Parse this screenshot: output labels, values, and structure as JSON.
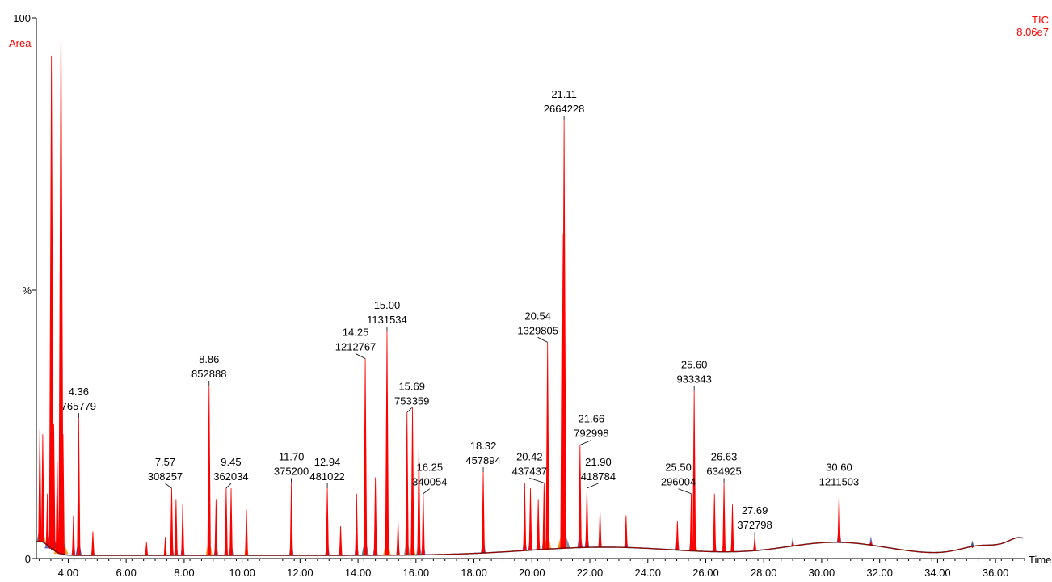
{
  "header": {
    "area_label": "Area",
    "trace_label": "TIC",
    "trace_intensity": "8.06e7"
  },
  "colors": {
    "trace": "#ff0000",
    "text": "#000000",
    "label_red": "#ff0000",
    "fill_palette": [
      "#1f3b8c",
      "#2f6b78",
      "#ff8c00",
      "#708090",
      "#4b4fa8"
    ]
  },
  "chart_data": {
    "type": "line",
    "x_unit_label": "Time",
    "y_unit_label": "%",
    "xlim": [
      2.9,
      37.0
    ],
    "ylim": [
      0,
      100
    ],
    "x_ticks": [
      4.0,
      6.0,
      8.0,
      10.0,
      12.0,
      14.0,
      16.0,
      18.0,
      20.0,
      22.0,
      24.0,
      26.0,
      28.0,
      30.0,
      32.0,
      34.0,
      36.0
    ],
    "x_tick_labels": [
      "4.00",
      "6.00",
      "8.00",
      "10.00",
      "12.00",
      "14.00",
      "16.00",
      "18.00",
      "20.00",
      "22.00",
      "24.00",
      "26.00",
      "28.00",
      "30.00",
      "32.00",
      "34.00",
      "36.00"
    ],
    "y_tick_labels": [
      {
        "value": 100,
        "label": "100"
      },
      {
        "value": 0,
        "label": "0"
      }
    ],
    "labeled_peaks": [
      {
        "rt": 4.36,
        "area": "765779",
        "rt_label": "4.36",
        "height": 26
      },
      {
        "rt": 7.57,
        "area": "308257",
        "rt_label": "7.57",
        "height": 13
      },
      {
        "rt": 8.86,
        "area": "852888",
        "rt_label": "8.86",
        "height": 32
      },
      {
        "rt": 9.45,
        "area": "362034",
        "rt_label": "9.45",
        "height": 13
      },
      {
        "rt": 11.7,
        "area": "375200",
        "rt_label": "11.70",
        "height": 14
      },
      {
        "rt": 12.94,
        "area": "481022",
        "rt_label": "12.94",
        "height": 13
      },
      {
        "rt": 14.25,
        "area": "1212767",
        "rt_label": "14.25",
        "height": 37
      },
      {
        "rt": 15.0,
        "area": "1131534",
        "rt_label": "15.00",
        "height": 42
      },
      {
        "rt": 15.69,
        "area": "753359",
        "rt_label": "15.69",
        "height": 27
      },
      {
        "rt": 16.25,
        "area": "340054",
        "rt_label": "16.25",
        "height": 12
      },
      {
        "rt": 18.32,
        "area": "457894",
        "rt_label": "18.32",
        "height": 16
      },
      {
        "rt": 20.42,
        "area": "437437",
        "rt_label": "20.42",
        "height": 14
      },
      {
        "rt": 20.54,
        "area": "1329805",
        "rt_label": "20.54",
        "height": 40
      },
      {
        "rt": 21.11,
        "area": "2664228",
        "rt_label": "21.11",
        "height": 81
      },
      {
        "rt": 21.66,
        "area": "792998",
        "rt_label": "21.66",
        "height": 21
      },
      {
        "rt": 21.9,
        "area": "418784",
        "rt_label": "21.90",
        "height": 13
      },
      {
        "rt": 25.5,
        "area": "296004",
        "rt_label": "25.50",
        "height": 12
      },
      {
        "rt": 25.6,
        "area": "933343",
        "rt_label": "25.60",
        "height": 31
      },
      {
        "rt": 26.63,
        "area": "634925",
        "rt_label": "26.63",
        "height": 14
      },
      {
        "rt": 27.69,
        "area": "372798",
        "rt_label": "27.69",
        "height": 4
      },
      {
        "rt": 30.6,
        "area": "1211503",
        "rt_label": "30.60",
        "height": 12
      }
    ],
    "unlabeled_peaks": [
      {
        "rt": 3.02,
        "height": 24
      },
      {
        "rt": 3.12,
        "height": 23
      },
      {
        "rt": 3.28,
        "height": 12
      },
      {
        "rt": 3.42,
        "height": 93
      },
      {
        "rt": 3.5,
        "height": 25
      },
      {
        "rt": 3.62,
        "height": 18
      },
      {
        "rt": 3.75,
        "height": 100
      },
      {
        "rt": 3.82,
        "height": 23
      },
      {
        "rt": 4.18,
        "height": 8
      },
      {
        "rt": 4.85,
        "height": 5
      },
      {
        "rt": 6.7,
        "height": 3
      },
      {
        "rt": 7.35,
        "height": 4
      },
      {
        "rt": 7.72,
        "height": 11
      },
      {
        "rt": 7.95,
        "height": 10
      },
      {
        "rt": 9.1,
        "height": 11
      },
      {
        "rt": 9.62,
        "height": 13
      },
      {
        "rt": 10.15,
        "height": 9
      },
      {
        "rt": 13.4,
        "height": 6
      },
      {
        "rt": 13.95,
        "height": 12
      },
      {
        "rt": 14.6,
        "height": 15
      },
      {
        "rt": 15.38,
        "height": 7
      },
      {
        "rt": 15.88,
        "height": 28
      },
      {
        "rt": 16.1,
        "height": 21
      },
      {
        "rt": 19.75,
        "height": 14
      },
      {
        "rt": 19.95,
        "height": 13
      },
      {
        "rt": 20.22,
        "height": 11
      },
      {
        "rt": 21.05,
        "height": 60
      },
      {
        "rt": 22.35,
        "height": 9
      },
      {
        "rt": 23.25,
        "height": 8
      },
      {
        "rt": 25.02,
        "height": 7
      },
      {
        "rt": 26.3,
        "height": 12
      },
      {
        "rt": 26.92,
        "height": 10
      },
      {
        "rt": 29.0,
        "height": 3
      },
      {
        "rt": 31.7,
        "height": 3
      },
      {
        "rt": 35.2,
        "height": 2
      }
    ]
  }
}
